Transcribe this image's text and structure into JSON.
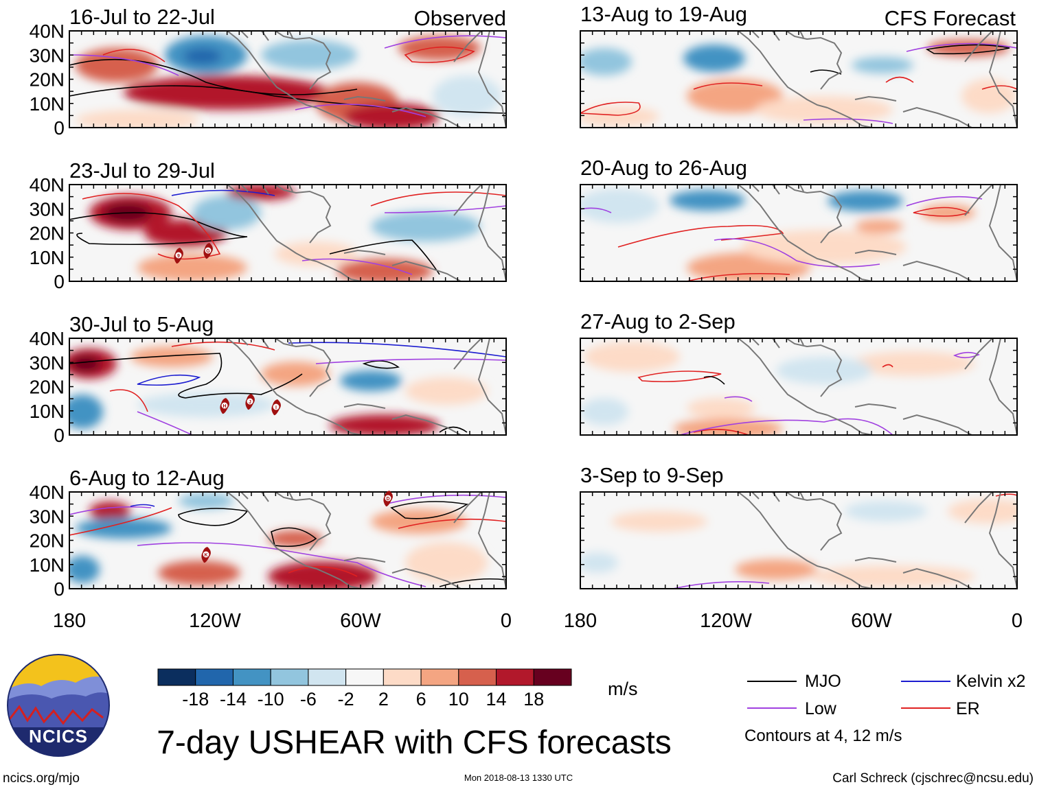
{
  "figure": {
    "title": "7-day USHEAR with CFS forecasts",
    "observed_label": "Observed",
    "forecast_label": "CFS Forecast",
    "units": "m/s"
  },
  "panels_observed": [
    {
      "period": "16-Jul to 22-Jul"
    },
    {
      "period": "23-Jul to 29-Jul"
    },
    {
      "period": "30-Jul to 5-Aug"
    },
    {
      "period": "6-Aug to 12-Aug"
    }
  ],
  "panels_forecast": [
    {
      "period": "13-Aug to 19-Aug"
    },
    {
      "period": "20-Aug to 26-Aug"
    },
    {
      "period": "27-Aug to 2-Sep"
    },
    {
      "period": "3-Sep to 9-Sep"
    }
  ],
  "axes": {
    "lat_labels": [
      "40N",
      "30N",
      "20N",
      "10N",
      "0"
    ],
    "lon_labels": [
      "180",
      "120W",
      "60W",
      "0"
    ]
  },
  "colorbar": {
    "colors": [
      "#0b2e5e",
      "#2166ac",
      "#4393c3",
      "#92c5de",
      "#d1e5f0",
      "#f7f7f7",
      "#fddbc7",
      "#f4a582",
      "#d6604d",
      "#b2182b",
      "#67001f"
    ],
    "labels": [
      "-18",
      "-14",
      "-10",
      "-6",
      "-2",
      "2",
      "6",
      "10",
      "14",
      "18"
    ]
  },
  "legend": {
    "items": [
      {
        "label": "MJO",
        "color": "#000000"
      },
      {
        "label": "Kelvin x2",
        "color": "#1c1cd0"
      },
      {
        "label": "Low",
        "color": "#a040e0"
      },
      {
        "label": "ER",
        "color": "#e02020"
      }
    ],
    "note": "Contours at 4, 12 m/s"
  },
  "storm_markers": [
    "9",
    "G",
    "H",
    "J",
    "I",
    "D",
    "K"
  ],
  "logo": {
    "text": "NCICS"
  },
  "footer": {
    "left": "ncics.org/mjo",
    "center": "Mon 2018-08-13 1330 UTC",
    "right": "Carl Schreck (cjschrec@ncsu.edu)"
  }
}
